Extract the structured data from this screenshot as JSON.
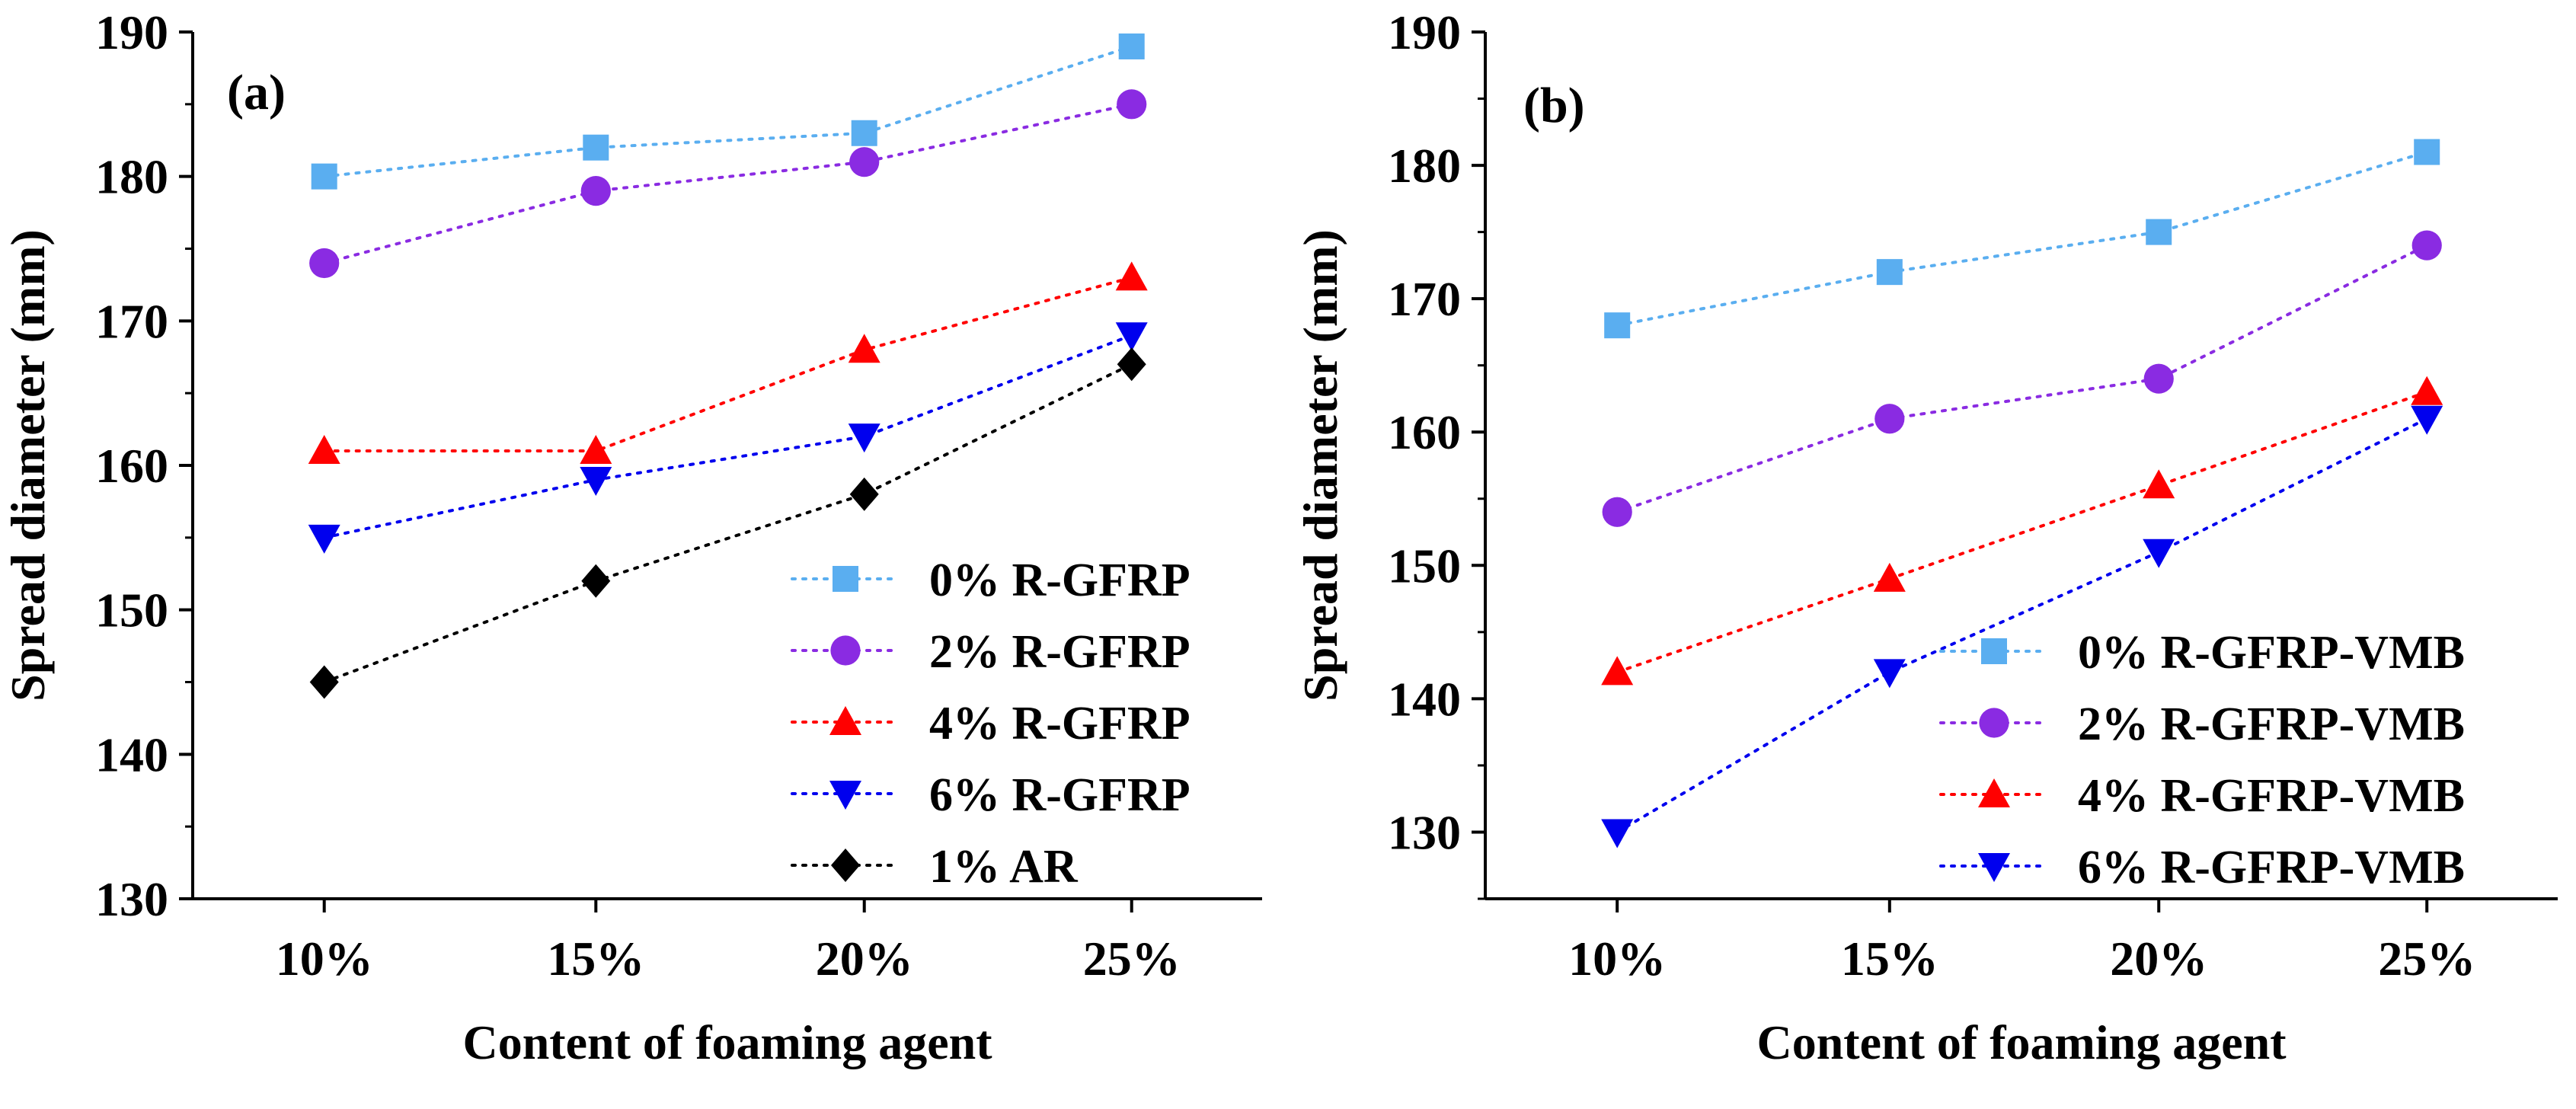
{
  "chart_data": [
    {
      "type": "line",
      "panel_label": "(a)",
      "xlabel": "Content of foaming agent",
      "ylabel": "Spread diameter (mm)",
      "categories": [
        "10%",
        "15%",
        "20%",
        "25%"
      ],
      "ylim": [
        130,
        190
      ],
      "yticks": [
        130,
        140,
        150,
        160,
        170,
        180,
        190
      ],
      "legend_position": "bottom-right",
      "series": [
        {
          "name": "0% R-GFRP",
          "marker": "square",
          "color": "#5aaef0",
          "values": [
            180,
            182,
            183,
            189
          ]
        },
        {
          "name": "2% R-GFRP",
          "marker": "circle",
          "color": "#8a2be2",
          "values": [
            174,
            179,
            181,
            185
          ]
        },
        {
          "name": "4% R-GFRP",
          "marker": "triangle-up",
          "color": "#ff0000",
          "values": [
            161,
            161,
            168,
            173
          ]
        },
        {
          "name": "6% R-GFRP",
          "marker": "triangle-down",
          "color": "#0000ee",
          "values": [
            155,
            159,
            162,
            169
          ]
        },
        {
          "name": "1% AR",
          "marker": "diamond",
          "color": "#000000",
          "values": [
            145,
            152,
            158,
            167
          ]
        }
      ]
    },
    {
      "type": "line",
      "panel_label": "(b)",
      "xlabel": "Content of foaming agent",
      "ylabel": "Spread diameter (mm)",
      "categories": [
        "10%",
        "15%",
        "20%",
        "25%"
      ],
      "ylim": [
        125,
        190
      ],
      "yticks": [
        130,
        140,
        150,
        160,
        170,
        180,
        190
      ],
      "legend_position": "bottom-right",
      "series": [
        {
          "name": "0% R-GFRP-VMB",
          "marker": "square",
          "color": "#5aaef0",
          "values": [
            168,
            172,
            175,
            181
          ]
        },
        {
          "name": "2% R-GFRP-VMB",
          "marker": "circle",
          "color": "#8a2be2",
          "values": [
            154,
            161,
            164,
            174
          ]
        },
        {
          "name": "4% R-GFRP-VMB",
          "marker": "triangle-up",
          "color": "#ff0000",
          "values": [
            142,
            149,
            156,
            163
          ]
        },
        {
          "name": "6% R-GFRP-VMB",
          "marker": "triangle-down",
          "color": "#0000ee",
          "values": [
            130,
            142,
            151,
            161
          ]
        }
      ]
    }
  ]
}
